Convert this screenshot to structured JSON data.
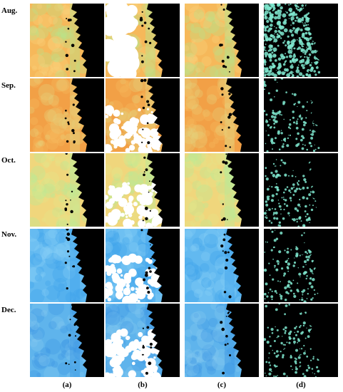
{
  "rows": [
    {
      "label": "Aug.",
      "palette": "aug"
    },
    {
      "label": "Sep.",
      "palette": "sep"
    },
    {
      "label": "Oct.",
      "palette": "oct"
    },
    {
      "label": "Nov.",
      "palette": "nov"
    },
    {
      "label": "Dec.",
      "palette": "dec"
    }
  ],
  "columns": [
    {
      "label": "(a)",
      "kind": "full"
    },
    {
      "label": "(b)",
      "kind": "gaps"
    },
    {
      "label": "(c)",
      "kind": "full"
    },
    {
      "label": "(d)",
      "kind": "difference"
    }
  ],
  "colors": {
    "land": "#000000",
    "gap": "#ffffff",
    "aug": {
      "base": "#f6b85a",
      "light": "#fad27a",
      "green": "#b9e28a"
    },
    "sep": {
      "base": "#f2a046",
      "light": "#f7bb5f",
      "green": "#e6d27c"
    },
    "oct": {
      "base": "#f0d67c",
      "light": "#e6e48a",
      "green": "#b7ea98"
    },
    "nov": {
      "base": "#62b9f0",
      "light": "#86cdf5",
      "green": "#3fa2ea"
    },
    "dec": {
      "base": "#5fb4ec",
      "light": "#84c8f2",
      "green": "#3f98e4"
    },
    "diff": {
      "speck": "#7fe7cf",
      "dark": "#000000"
    }
  }
}
